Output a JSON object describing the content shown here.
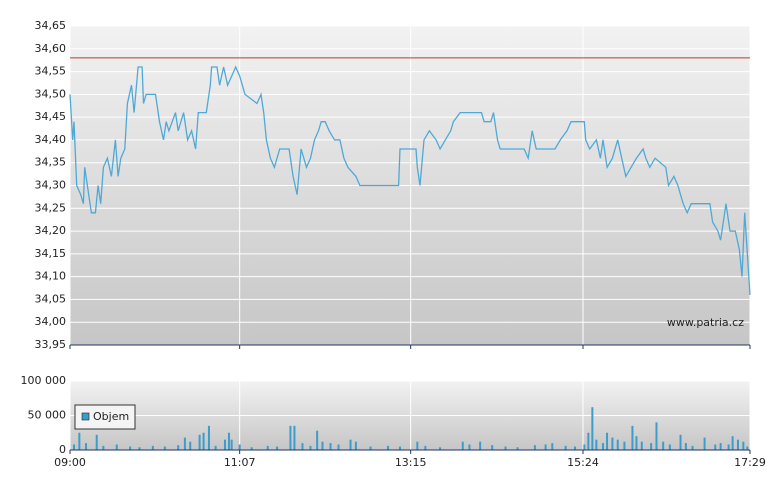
{
  "chart_data": [
    {
      "type": "line",
      "color": "#4fa9d6",
      "xlim": [
        540,
        1049
      ],
      "ylim": [
        33.95,
        34.65
      ],
      "yticks": [
        {
          "value": 33.95,
          "label": "33,95"
        },
        {
          "value": 34.0,
          "label": "34,00"
        },
        {
          "value": 34.05,
          "label": "34,05"
        },
        {
          "value": 34.1,
          "label": "34,10"
        },
        {
          "value": 34.15,
          "label": "34,15"
        },
        {
          "value": 34.2,
          "label": "34,20"
        },
        {
          "value": 34.25,
          "label": "34,25"
        },
        {
          "value": 34.3,
          "label": "34,30"
        },
        {
          "value": 34.35,
          "label": "34,35"
        },
        {
          "value": 34.4,
          "label": "34,40"
        },
        {
          "value": 34.45,
          "label": "34,45"
        },
        {
          "value": 34.5,
          "label": "34,50"
        },
        {
          "value": 34.55,
          "label": "34,55"
        },
        {
          "value": 34.6,
          "label": "34,60"
        },
        {
          "value": 34.65,
          "label": "34,65"
        }
      ],
      "reference_line": {
        "value": 34.58,
        "color": "#c0392b"
      },
      "watermark": "www.patria.cz",
      "grid": true,
      "x": [
        540,
        542,
        543,
        545,
        548,
        550,
        551,
        554,
        556,
        559,
        561,
        563,
        565,
        568,
        571,
        574,
        576,
        578,
        581,
        583,
        586,
        588,
        591,
        594,
        595,
        597,
        604,
        607,
        610,
        612,
        614,
        619,
        621,
        625,
        628,
        631,
        634,
        636,
        642,
        645,
        646,
        650,
        652,
        655,
        658,
        661,
        664,
        667,
        671,
        680,
        683,
        685,
        687,
        690,
        693,
        697,
        704,
        707,
        710,
        713,
        717,
        720,
        723,
        726,
        728,
        731,
        734,
        738,
        742,
        745,
        748,
        754,
        757,
        786,
        787,
        799,
        800,
        802,
        805,
        809,
        814,
        817,
        825,
        827,
        832,
        848,
        850,
        855,
        857,
        860,
        862,
        880,
        883,
        886,
        889,
        903,
        907,
        912,
        915,
        925,
        926,
        929,
        934,
        937,
        939,
        942,
        946,
        950,
        953,
        956,
        960,
        964,
        969,
        971,
        974,
        978,
        986,
        988,
        992,
        995,
        997,
        999,
        1002,
        1005,
        1019,
        1021,
        1025,
        1027,
        1029,
        1031,
        1034,
        1038,
        1041,
        1043,
        1045,
        1049
      ],
      "values": [
        34.5,
        34.4,
        34.44,
        34.3,
        34.28,
        34.26,
        34.34,
        34.28,
        34.24,
        34.24,
        34.3,
        34.26,
        34.34,
        34.36,
        34.32,
        34.4,
        34.32,
        34.36,
        34.38,
        34.48,
        34.52,
        34.46,
        34.56,
        34.56,
        34.48,
        34.5,
        34.5,
        34.44,
        34.4,
        34.44,
        34.42,
        34.46,
        34.42,
        34.46,
        34.4,
        34.42,
        34.38,
        34.46,
        34.46,
        34.52,
        34.56,
        34.56,
        34.52,
        34.56,
        34.52,
        34.54,
        34.56,
        34.54,
        34.5,
        34.48,
        34.5,
        34.46,
        34.4,
        34.36,
        34.34,
        34.38,
        34.38,
        34.32,
        34.28,
        34.38,
        34.34,
        34.36,
        34.4,
        34.42,
        34.44,
        34.44,
        34.42,
        34.4,
        34.4,
        34.36,
        34.34,
        34.32,
        34.3,
        34.3,
        34.38,
        34.38,
        34.34,
        34.3,
        34.4,
        34.42,
        34.4,
        34.38,
        34.42,
        34.44,
        34.46,
        34.46,
        34.44,
        34.44,
        34.46,
        34.4,
        34.38,
        34.38,
        34.36,
        34.42,
        34.38,
        34.38,
        34.4,
        34.42,
        34.44,
        34.44,
        34.4,
        34.38,
        34.4,
        34.36,
        34.4,
        34.34,
        34.36,
        34.4,
        34.36,
        34.32,
        34.34,
        34.36,
        34.38,
        34.36,
        34.34,
        34.36,
        34.34,
        34.3,
        34.32,
        34.3,
        34.28,
        34.26,
        34.24,
        34.26,
        34.26,
        34.22,
        34.2,
        34.18,
        34.22,
        34.26,
        34.2,
        34.2,
        34.16,
        34.1,
        34.24,
        34.06
      ]
    },
    {
      "type": "bar",
      "series_name": "Objem",
      "color": "#3d9cc9",
      "xlim": [
        540,
        1049
      ],
      "xticks": [
        {
          "value": 540,
          "label": "09:00"
        },
        {
          "value": 667,
          "label": "11:07"
        },
        {
          "value": 795,
          "label": "13:15"
        },
        {
          "value": 924,
          "label": "15:24"
        },
        {
          "value": 1049,
          "label": "17:29"
        }
      ],
      "ylim": [
        0,
        100000
      ],
      "yticks": [
        0,
        {
          "value": 50000,
          "label": "50 000"
        },
        {
          "value": 100000,
          "label": "100 000"
        }
      ],
      "grid": true,
      "x": [
        543,
        547,
        552,
        560,
        565,
        575,
        585,
        592,
        602,
        611,
        621,
        626,
        630,
        637,
        640,
        644,
        649,
        656,
        659,
        661,
        667,
        676,
        688,
        695,
        705,
        708,
        714,
        720,
        725,
        729,
        735,
        741,
        750,
        754,
        765,
        778,
        787,
        800,
        806,
        817,
        834,
        839,
        847,
        856,
        866,
        875,
        888,
        896,
        901,
        911,
        918,
        925,
        928,
        931,
        934,
        939,
        942,
        946,
        950,
        955,
        961,
        964,
        968,
        975,
        979,
        984,
        989,
        997,
        1001,
        1006,
        1015,
        1023,
        1027,
        1033,
        1036,
        1040,
        1044,
        1047
      ],
      "values": [
        8000,
        25000,
        10000,
        22000,
        6000,
        8000,
        5000,
        4000,
        6000,
        5000,
        7000,
        18000,
        12000,
        22000,
        25000,
        35000,
        6000,
        15000,
        25000,
        15000,
        8000,
        4000,
        6000,
        5000,
        35000,
        35000,
        10000,
        6000,
        28000,
        12000,
        10000,
        8000,
        15000,
        12000,
        5000,
        6000,
        5000,
        12000,
        6000,
        4000,
        12000,
        8000,
        12000,
        7000,
        5000,
        4000,
        7000,
        8000,
        10000,
        6000,
        5000,
        8000,
        25000,
        62000,
        15000,
        10000,
        25000,
        18000,
        15000,
        12000,
        35000,
        20000,
        12000,
        10000,
        40000,
        12000,
        8000,
        22000,
        10000,
        6000,
        18000,
        8000,
        10000,
        8000,
        20000,
        15000,
        12000,
        5000
      ]
    }
  ]
}
